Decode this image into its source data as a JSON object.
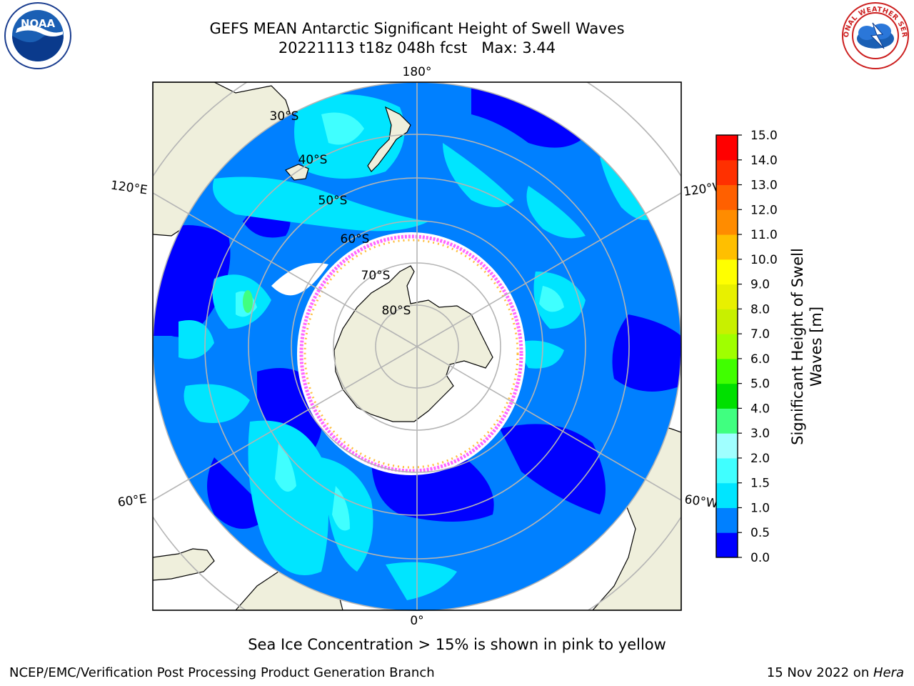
{
  "title": {
    "line1": "GEFS MEAN Antarctic Significant Height of Swell Waves",
    "line2": "20221113 t18z 048h fcst   Max: 3.44"
  },
  "map": {
    "projection": "south-polar-stereographic",
    "longitude_labels": {
      "top": "180°",
      "bottom": "0°",
      "upper_left": "120°E",
      "upper_right": "120°W",
      "lower_left": "60°E",
      "lower_right": "60°W"
    },
    "latitude_labels": [
      "30°S",
      "40°S",
      "50°S",
      "60°S",
      "70°S",
      "80°S"
    ]
  },
  "colorbar": {
    "label_line1": "Significant Height of Swell",
    "label_line2": "Waves [m]",
    "ticks": [
      "0.0",
      "0.5",
      "1.0",
      "1.5",
      "2.0",
      "3.0",
      "4.0",
      "5.0",
      "6.0",
      "7.0",
      "8.0",
      "9.0",
      "10.0",
      "11.0",
      "12.0",
      "13.0",
      "14.0",
      "15.0"
    ],
    "colors": [
      "#0000ff",
      "#0080ff",
      "#00e5ff",
      "#40ffff",
      "#a0ffff",
      "#40ff80",
      "#00e000",
      "#40ff00",
      "#a0ff00",
      "#c8f000",
      "#e8f000",
      "#ffff00",
      "#ffbf00",
      "#ff8c00",
      "#ff6000",
      "#ff3000",
      "#ff0000"
    ]
  },
  "caption": "Sea Ice Concentration > 15% is shown in pink to yellow",
  "footer": {
    "left": "NCEP/EMC/Verification Post Processing Product Generation Branch",
    "right_prefix": "15 Nov 2022 on ",
    "right_italic": "Hera"
  },
  "logos": {
    "left": "NOAA",
    "right": "NATIONAL WEATHER SERVICE"
  }
}
